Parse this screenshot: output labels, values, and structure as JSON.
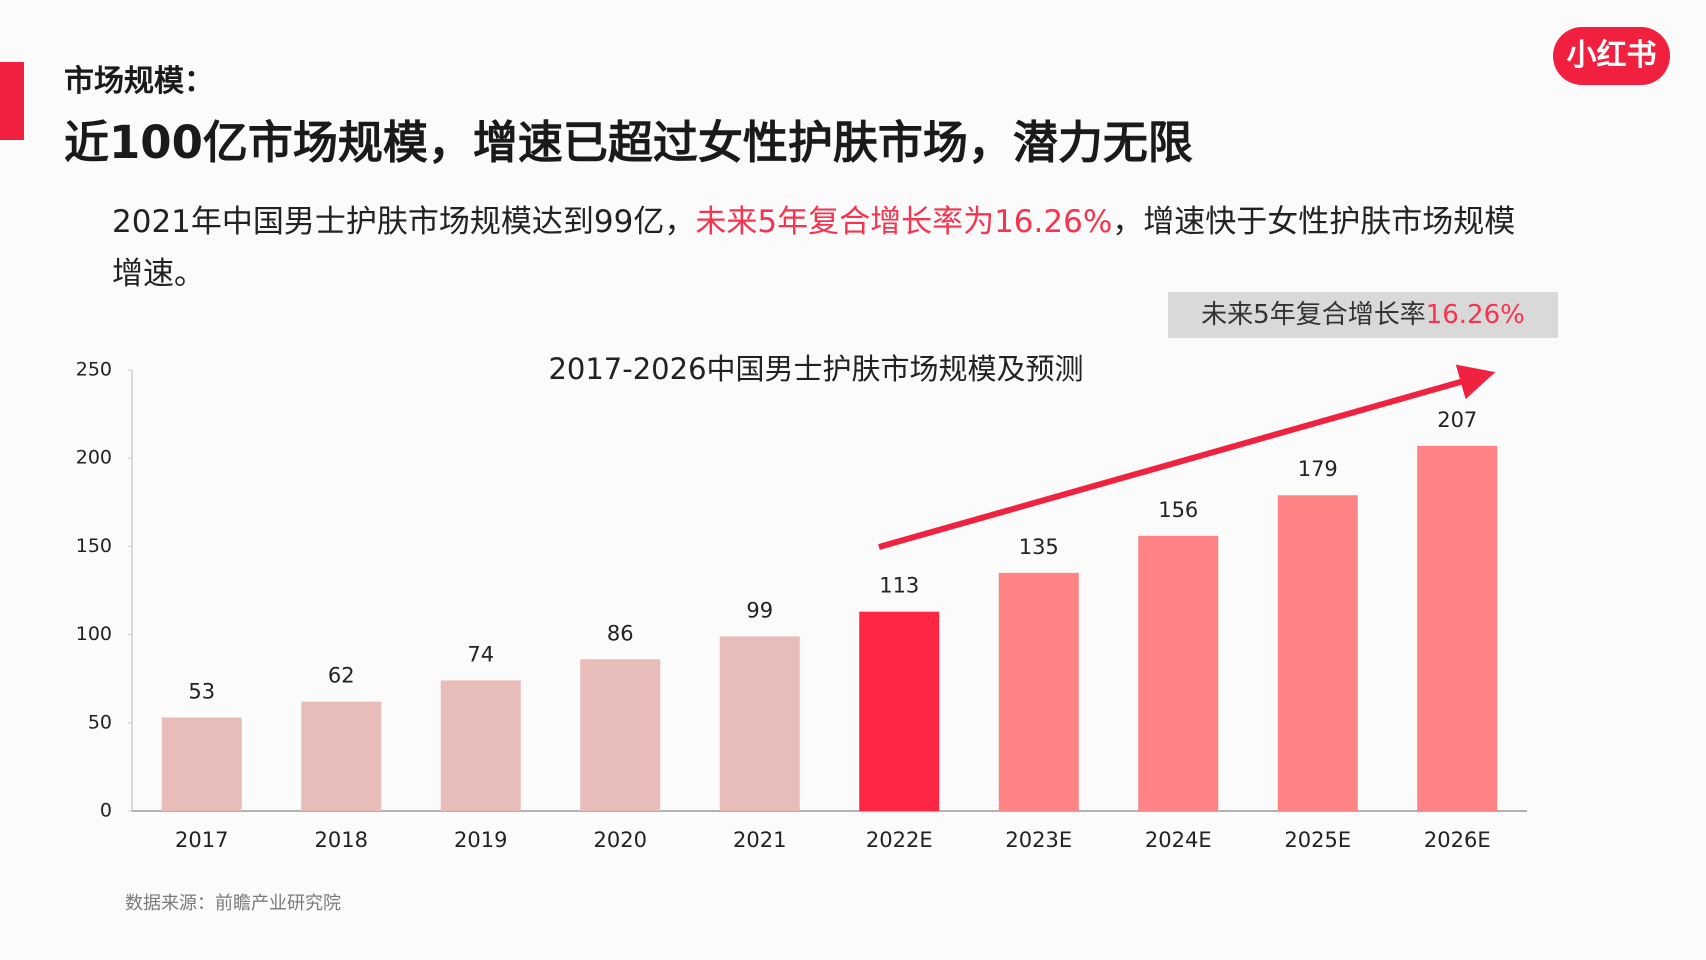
{
  "header": {
    "section": "市场规模：",
    "headline": "近100亿市场规模，增速已超过女性护肤市场，潜力无限",
    "body_intro": "2021年中国男士护肤市场规模达到99亿，",
    "body_highlight": "未来5年复合增长率为16.26%",
    "body_rest": "，增速快于女性护肤市场规模增速。",
    "logo": "小红书",
    "callout_text": "未来5年复合增长率",
    "callout_value": "16.26%"
  },
  "chart_data": {
    "type": "bar",
    "title": "2017-2026中国男士护肤市场规模及预测",
    "categories": [
      "2017",
      "2018",
      "2019",
      "2020",
      "2021",
      "2022E",
      "2023E",
      "2024E",
      "2025E",
      "2026E"
    ],
    "values": [
      53,
      62,
      74,
      86,
      99,
      113,
      135,
      156,
      179,
      207
    ],
    "colors": [
      "#e8bcb8",
      "#e8bcb8",
      "#e8bcb8",
      "#e8bcb8",
      "#e8bcb8",
      "#fe2644",
      "#fd8385",
      "#fd8385",
      "#fd8385",
      "#fd8385"
    ],
    "ylim": [
      0,
      250
    ],
    "yticks": [
      0,
      50,
      100,
      150,
      200,
      250
    ],
    "grid": false
  },
  "source": "数据来源：前瞻产业研究院"
}
